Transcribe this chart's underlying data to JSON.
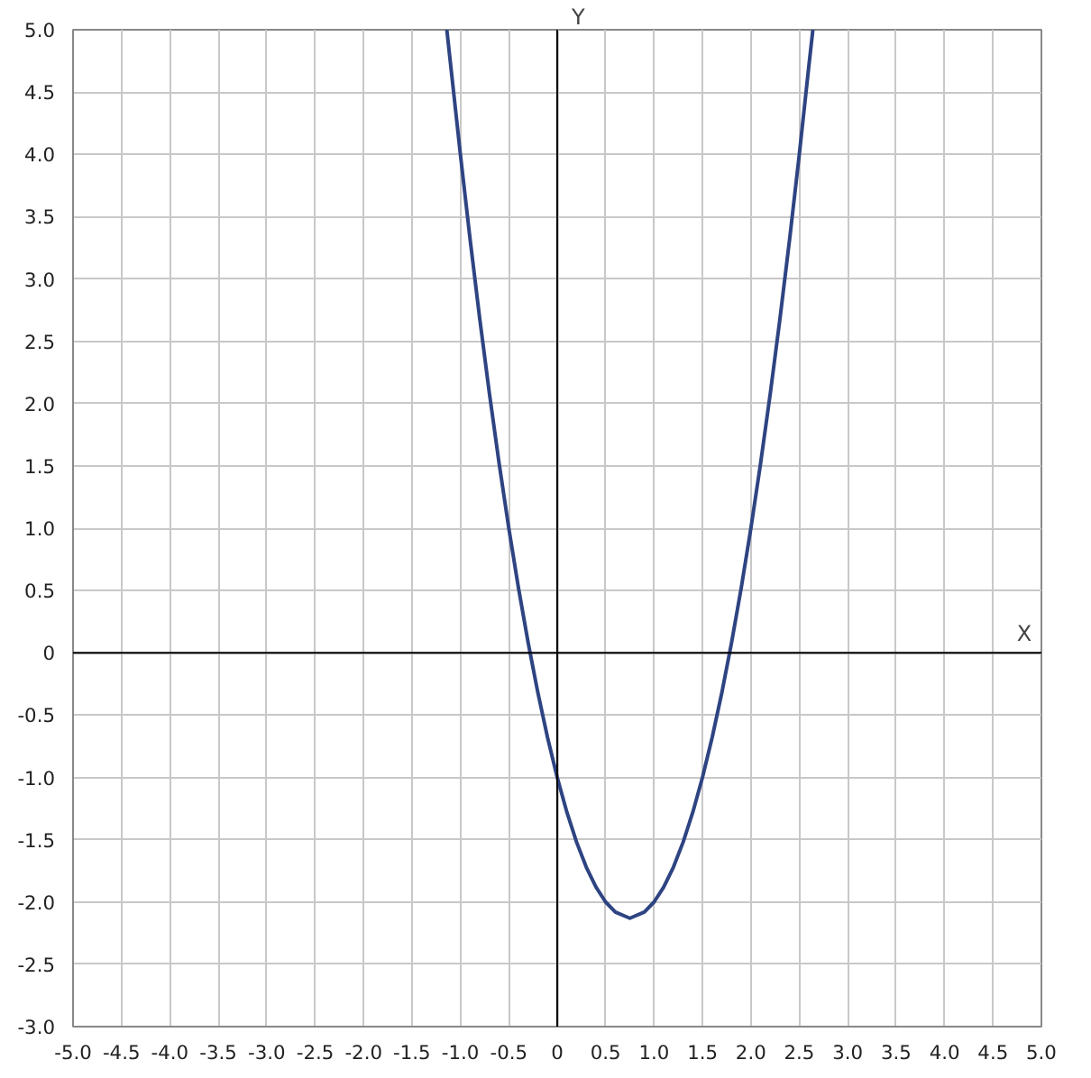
{
  "chart_data": {
    "type": "line",
    "xlabel": "X",
    "ylabel": "Y",
    "xlim": [
      -5,
      5
    ],
    "ylim": [
      -3,
      5
    ],
    "xticks": [
      {
        "value": -5,
        "label": "-5.0"
      },
      {
        "value": -4.5,
        "label": "-4.5"
      },
      {
        "value": -4,
        "label": "-4.0"
      },
      {
        "value": -3.5,
        "label": "-3.5"
      },
      {
        "value": -3,
        "label": "-3.0"
      },
      {
        "value": -2.5,
        "label": "-2.5"
      },
      {
        "value": -2,
        "label": "-2.0"
      },
      {
        "value": -1.5,
        "label": "-1.5"
      },
      {
        "value": -1,
        "label": "-1.0"
      },
      {
        "value": -0.5,
        "label": "-0.5"
      },
      0,
      {
        "value": 0.5,
        "label": "0.5"
      },
      {
        "value": 1,
        "label": "1.0"
      },
      {
        "value": 1.5,
        "label": "1.5"
      },
      {
        "value": 2,
        "label": "2.0"
      },
      {
        "value": 2.5,
        "label": "2.5"
      },
      {
        "value": 3,
        "label": "3.0"
      },
      {
        "value": 3.5,
        "label": "3.5"
      },
      {
        "value": 4,
        "label": "4.0"
      },
      {
        "value": 4.5,
        "label": "4.5"
      },
      {
        "value": 5,
        "label": "5.0"
      }
    ],
    "yticks": [
      {
        "value": -3,
        "label": "-3.0"
      },
      {
        "value": -2.5,
        "label": "-2.5"
      },
      {
        "value": -2,
        "label": "-2.0"
      },
      {
        "value": -1.5,
        "label": "-1.5"
      },
      {
        "value": -1,
        "label": "-1.0"
      },
      {
        "value": -0.5,
        "label": "-0.5"
      },
      0,
      {
        "value": 0.5,
        "label": "0.5"
      },
      {
        "value": 1,
        "label": "1.0"
      },
      {
        "value": 1.5,
        "label": "1.5"
      },
      {
        "value": 2,
        "label": "2.0"
      },
      {
        "value": 2.5,
        "label": "2.5"
      },
      {
        "value": 3,
        "label": "3.0"
      },
      {
        "value": 3.5,
        "label": "3.5"
      },
      {
        "value": 4,
        "label": "4.0"
      },
      {
        "value": 4.5,
        "label": "4.5"
      },
      {
        "value": 5,
        "label": "5.0"
      }
    ],
    "grid": true,
    "series": [
      {
        "color": "#2e4482",
        "x": [
          -1.14,
          -1.0,
          -0.9,
          -0.8,
          -0.7,
          -0.6,
          -0.5,
          -0.4,
          -0.3,
          -0.2,
          -0.1,
          0,
          0.1,
          0.2,
          0.3,
          0.4,
          0.5,
          0.6,
          0.75,
          0.9,
          1.0,
          1.1,
          1.2,
          1.3,
          1.4,
          1.5,
          1.6,
          1.7,
          1.8,
          1.9,
          2.0,
          2.1,
          2.2,
          2.3,
          2.4,
          2.5,
          2.6,
          2.64
        ],
        "values": [
          5.0,
          4.0,
          3.32,
          2.68,
          2.08,
          1.52,
          1.0,
          0.52,
          0.08,
          -0.32,
          -0.68,
          -1.0,
          -1.28,
          -1.52,
          -1.72,
          -1.88,
          -2.0,
          -2.08,
          -2.13,
          -2.08,
          -2.0,
          -1.88,
          -1.72,
          -1.52,
          -1.28,
          -1.0,
          -0.68,
          -0.32,
          0.08,
          0.52,
          1.0,
          1.52,
          2.08,
          2.68,
          3.32,
          4.0,
          4.72,
          5.0
        ]
      }
    ]
  }
}
